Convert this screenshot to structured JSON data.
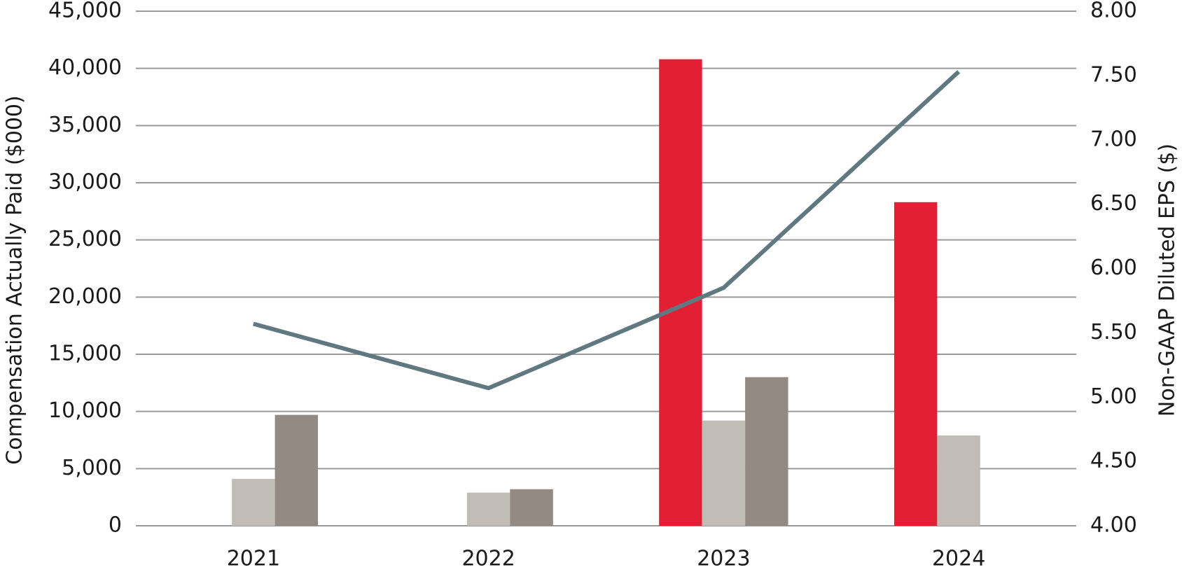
{
  "chart_data": {
    "type": "bar",
    "categories": [
      "2021",
      "2022",
      "2023",
      "2024"
    ],
    "y_label": "Compensation Actually Paid ($000)",
    "y2_label": "Non-GAAP Diluted EPS ($)",
    "ylim": [
      0,
      45000
    ],
    "yticks": [
      0,
      {
        "value": 5000,
        "label": "5,000"
      },
      {
        "value": 10000,
        "label": "10,000"
      },
      {
        "value": 15000,
        "label": "15,000"
      },
      {
        "value": 20000,
        "label": "20,000"
      },
      {
        "value": 25000,
        "label": "25,000"
      },
      {
        "value": 30000,
        "label": "30,000"
      },
      {
        "value": 35000,
        "label": "35,000"
      },
      {
        "value": 40000,
        "label": "40,000"
      },
      {
        "value": 45000,
        "label": "45,000"
      }
    ],
    "y2lim": [
      4,
      8
    ],
    "y2ticks": [
      {
        "value": 4,
        "label": "4.00"
      },
      {
        "value": 4.5,
        "label": "4.50"
      },
      {
        "value": 5,
        "label": "5.00"
      },
      {
        "value": 5.5,
        "label": "5.50"
      },
      {
        "value": 6,
        "label": "6.00"
      },
      {
        "value": 6.5,
        "label": "6.50"
      },
      {
        "value": 7,
        "label": "7.00"
      },
      {
        "value": 7.5,
        "label": "7.50"
      },
      {
        "value": 8,
        "label": "8.00"
      }
    ],
    "grid": true,
    "series": [
      {
        "color": "#e31f36",
        "values": [
          null,
          null,
          40800,
          28300
        ]
      },
      {
        "color": "#c2bcb7",
        "values": [
          4100,
          2900,
          9200,
          7900
        ]
      },
      {
        "color": "#948a84",
        "values": [
          9700,
          3200,
          13000,
          null
        ]
      },
      {
        "type": "line",
        "axis": "y2",
        "color": "#607880",
        "values": [
          5.57,
          5.07,
          5.85,
          7.53
        ]
      }
    ]
  }
}
